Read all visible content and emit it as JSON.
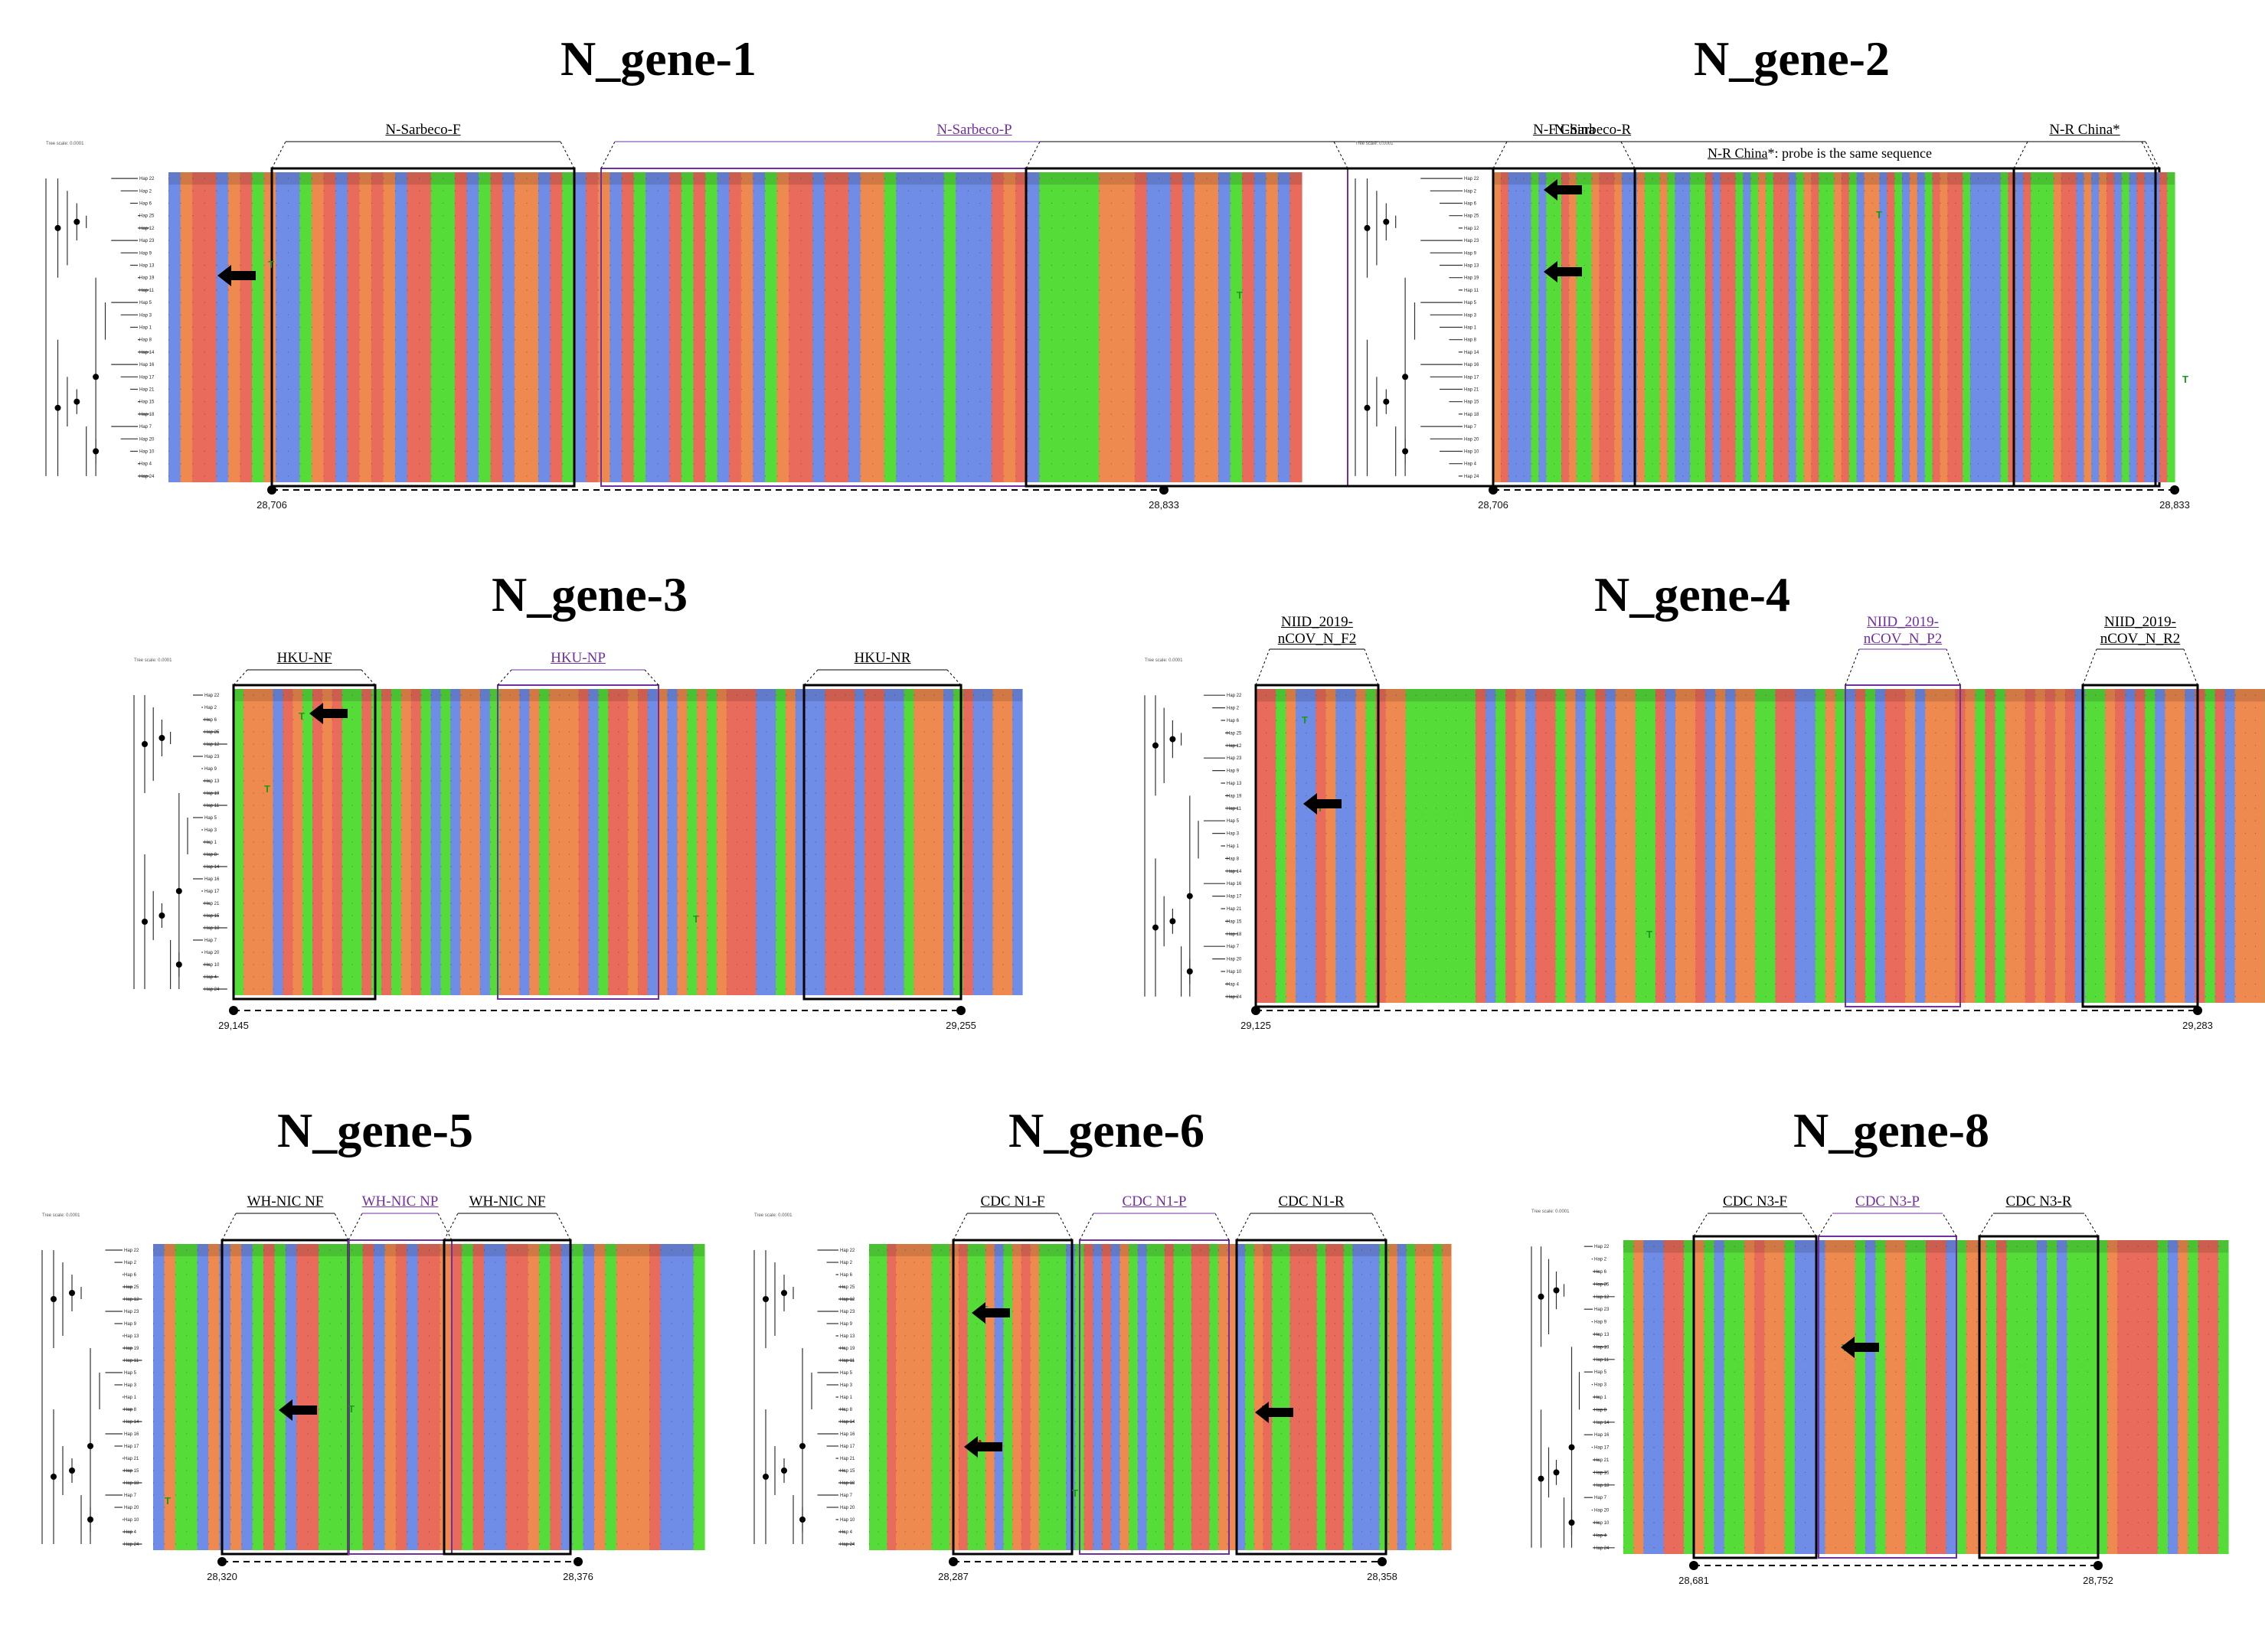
{
  "figure": {
    "colors": {
      "A": "#e96b5b",
      "C": "#6f8ce6",
      "G": "#ee8a4f",
      "T": "#55dc39",
      "primer_box": "#000000",
      "probe_box": "#7030a0",
      "tree": "#333333"
    },
    "scale_label": "Tree scale: 0.0001",
    "haplotypes": [
      "Hap 22",
      "Hap 2",
      "Hap 6",
      "Hap 25",
      "Hap 12",
      "Hap 23",
      "Hap 9",
      "Hap 13",
      "Hap 19",
      "Hap 11",
      "Hap 5",
      "Hap 3",
      "Hap 1",
      "Hap 8",
      "Hap 14",
      "Hap 16",
      "Hap 17",
      "Hap 21",
      "Hap 15",
      "Hap 18",
      "Hap 7",
      "Hap 20",
      "Hap 10",
      "Hap 4",
      "Hap 24"
    ],
    "panels": [
      {
        "title": "N_gene-1",
        "start_coord": "28,706",
        "end_coord": "28,833",
        "note": "",
        "primers": [
          {
            "label": "N-Sarbeco-F",
            "kind": "primer"
          },
          {
            "label": "N-Sarbeco-P",
            "kind": "probe"
          },
          {
            "label": "N-Sarbeco-R",
            "kind": "primer"
          }
        ]
      },
      {
        "title": "N_gene-2",
        "start_coord": "28,706",
        "end_coord": "28,833",
        "note_underlined": "N-R China",
        "note_rest": "*: probe is the same sequence",
        "primers": [
          {
            "label": "N-F China",
            "kind": "primer"
          },
          {
            "label": "N-R China*",
            "kind": "primer"
          }
        ]
      },
      {
        "title": "N_gene-3",
        "start_coord": "29,145",
        "end_coord": "29,255",
        "primers": [
          {
            "label": "HKU-NF",
            "kind": "primer"
          },
          {
            "label": "HKU-NP",
            "kind": "probe"
          },
          {
            "label": "HKU-NR",
            "kind": "primer"
          }
        ]
      },
      {
        "title": "N_gene-4",
        "start_coord": "29,125",
        "end_coord": "29,283",
        "primers": [
          {
            "label": "NIID_2019-nCOV_N_F2",
            "kind": "primer"
          },
          {
            "label": "NIID_2019-nCOV_N_P2",
            "kind": "probe"
          },
          {
            "label": "NIID_2019-nCOV_N_R2",
            "kind": "primer"
          }
        ]
      },
      {
        "title": "N_gene-5",
        "start_coord": "28,320",
        "end_coord": "28,376",
        "primers": [
          {
            "label": "WH-NIC NF",
            "kind": "primer"
          },
          {
            "label": "WH-NIC NP",
            "kind": "probe"
          },
          {
            "label": "WH-NIC NF",
            "kind": "primer"
          }
        ]
      },
      {
        "title": "N_gene-6",
        "start_coord": "28,287",
        "end_coord": "28,358",
        "primers": [
          {
            "label": "CDC N1-F",
            "kind": "primer"
          },
          {
            "label": "CDC N1-P",
            "kind": "probe"
          },
          {
            "label": "CDC N1-R",
            "kind": "primer"
          }
        ]
      },
      {
        "title": "N_gene-8",
        "start_coord": "28,681",
        "end_coord": "28,752",
        "primers": [
          {
            "label": "CDC N3-F",
            "kind": "primer"
          },
          {
            "label": "CDC N3-P",
            "kind": "probe"
          },
          {
            "label": "CDC N3-R",
            "kind": "primer"
          }
        ]
      }
    ]
  }
}
